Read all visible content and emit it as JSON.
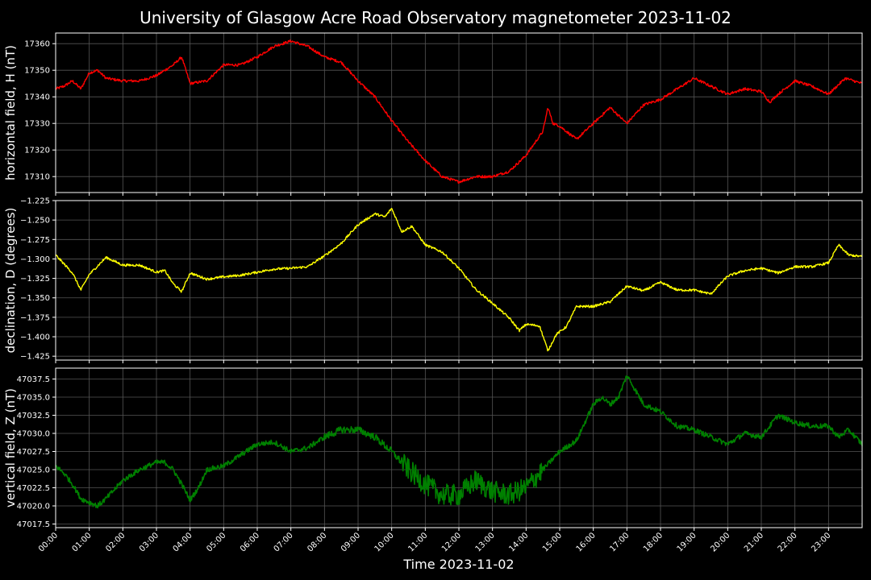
{
  "figure": {
    "title": "University of Glasgow Acre Road Observatory magnetometer 2023-11-02",
    "xlabel": "Time 2023-11-02",
    "background": "#000000",
    "text_color": "#ffffff",
    "grid_color": "#555555"
  },
  "chart_data": [
    {
      "type": "line",
      "ylabel": "horizontal field, H (nT)",
      "color": "#ff0000",
      "grid": true,
      "x_hours": [
        0,
        0.25,
        0.5,
        0.75,
        1.0,
        1.25,
        1.5,
        2.0,
        2.5,
        3.0,
        3.5,
        3.75,
        4.0,
        4.5,
        5.0,
        5.5,
        6.0,
        6.5,
        7.0,
        7.5,
        8.0,
        8.5,
        9.0,
        9.5,
        10.0,
        10.5,
        11.0,
        11.5,
        12.0,
        12.5,
        13.0,
        13.5,
        14.0,
        14.5,
        14.65,
        14.8,
        15.0,
        15.5,
        16.0,
        16.5,
        17.0,
        17.5,
        18.0,
        18.5,
        19.0,
        19.5,
        20.0,
        20.5,
        21.0,
        21.25,
        21.5,
        22.0,
        22.5,
        23.0,
        23.5,
        24.0
      ],
      "values": [
        17343,
        17344,
        17346,
        17343,
        17349,
        17350,
        17347,
        17346,
        17346,
        17348,
        17352,
        17355,
        17345,
        17346,
        17352,
        17352,
        17355,
        17359,
        17361,
        17359,
        17355,
        17353,
        17346,
        17340,
        17331,
        17323,
        17316,
        17310,
        17308,
        17310,
        17310,
        17312,
        17318,
        17327,
        17336,
        17330,
        17329,
        17324,
        17330,
        17336,
        17330,
        17337,
        17339,
        17343,
        17347,
        17344,
        17341,
        17343,
        17342,
        17338,
        17341,
        17346,
        17344,
        17341,
        17347,
        17345
      ],
      "ylim": [
        17304,
        17364
      ],
      "yticks": [
        17310,
        17320,
        17330,
        17340,
        17350,
        17360
      ],
      "ytick_labels": [
        "17310",
        "17320",
        "17330",
        "17340",
        "17350",
        "17360"
      ]
    },
    {
      "type": "line",
      "ylabel": "declination, D (degrees)",
      "color": "#ffff00",
      "grid": true,
      "x_hours": [
        0,
        0.5,
        0.75,
        1.0,
        1.5,
        2.0,
        2.5,
        3.0,
        3.25,
        3.5,
        3.75,
        4.0,
        4.5,
        5.0,
        5.5,
        6.0,
        6.5,
        7.0,
        7.5,
        8.0,
        8.5,
        9.0,
        9.5,
        9.8,
        10.0,
        10.3,
        10.6,
        11.0,
        11.5,
        12.0,
        12.5,
        13.0,
        13.5,
        13.8,
        14.0,
        14.4,
        14.65,
        14.9,
        15.2,
        15.5,
        16.0,
        16.5,
        17.0,
        17.5,
        18.0,
        18.5,
        19.0,
        19.5,
        20.0,
        20.5,
        21.0,
        21.5,
        22.0,
        22.5,
        23.0,
        23.3,
        23.6,
        24.0
      ],
      "values": [
        -1.295,
        -1.318,
        -1.34,
        -1.32,
        -1.298,
        -1.308,
        -1.308,
        -1.317,
        -1.315,
        -1.332,
        -1.342,
        -1.318,
        -1.326,
        -1.323,
        -1.321,
        -1.317,
        -1.313,
        -1.312,
        -1.31,
        -1.296,
        -1.28,
        -1.256,
        -1.242,
        -1.246,
        -1.235,
        -1.265,
        -1.258,
        -1.282,
        -1.291,
        -1.312,
        -1.339,
        -1.357,
        -1.376,
        -1.392,
        -1.384,
        -1.386,
        -1.418,
        -1.397,
        -1.387,
        -1.361,
        -1.361,
        -1.355,
        -1.335,
        -1.341,
        -1.33,
        -1.34,
        -1.34,
        -1.345,
        -1.322,
        -1.315,
        -1.312,
        -1.318,
        -1.31,
        -1.31,
        -1.305,
        -1.282,
        -1.295,
        -1.297
      ],
      "ylim": [
        -1.43,
        -1.225
      ],
      "yticks": [
        -1.425,
        -1.4,
        -1.375,
        -1.35,
        -1.325,
        -1.3,
        -1.275,
        -1.25,
        -1.225
      ],
      "ytick_labels": [
        "−1.425",
        "−1.400",
        "−1.375",
        "−1.350",
        "−1.325",
        "−1.300",
        "−1.275",
        "−1.250",
        "−1.225"
      ]
    },
    {
      "type": "line",
      "ylabel": "vertical field, Z (nT)",
      "color": "#008000",
      "grid": true,
      "x_hours": [
        0,
        0.25,
        0.5,
        0.75,
        1.0,
        1.25,
        1.5,
        2.0,
        2.5,
        3.0,
        3.25,
        3.5,
        3.75,
        4.0,
        4.25,
        4.5,
        5.0,
        5.5,
        6.0,
        6.5,
        7.0,
        7.5,
        8.0,
        8.5,
        9.0,
        9.5,
        10.0,
        10.5,
        11.0,
        11.5,
        12.0,
        12.5,
        13.0,
        13.5,
        14.0,
        14.5,
        15.0,
        15.5,
        16.0,
        16.25,
        16.5,
        16.75,
        17.0,
        17.5,
        18.0,
        18.5,
        19.0,
        19.5,
        20.0,
        20.5,
        21.0,
        21.25,
        21.5,
        22.0,
        22.5,
        23.0,
        23.3,
        23.6,
        24.0
      ],
      "values": [
        47025.5,
        47024.5,
        47023,
        47021,
        47020.5,
        47020,
        47021,
        47023.5,
        47025,
        47026,
        47026,
        47025,
        47023,
        47020.8,
        47022.5,
        47025,
        47025.5,
        47027,
        47028.5,
        47028.8,
        47027.5,
        47028,
        47029.5,
        47030.5,
        47030.5,
        47029.5,
        47027.5,
        47025,
        47023,
        47021.5,
        47021.5,
        47023.5,
        47022,
        47021.5,
        47022.5,
        47025,
        47027.5,
        47029,
        47034,
        47035,
        47034,
        47035,
        47038,
        47034,
        47033,
        47031,
        47030.5,
        47029.5,
        47028.5,
        47030,
        47029.5,
        47031,
        47032.5,
        47031.5,
        47031,
        47031,
        47029.5,
        47030.5,
        47028.5
      ],
      "ylim": [
        47017,
        47039
      ],
      "yticks": [
        47017.5,
        47020.0,
        47022.5,
        47025.0,
        47027.5,
        47030.0,
        47032.5,
        47035.0,
        47037.5
      ],
      "ytick_labels": [
        "47017.5",
        "47020.0",
        "47022.5",
        "47025.0",
        "47027.5",
        "47030.0",
        "47032.5",
        "47035.0",
        "47037.5"
      ]
    }
  ],
  "x_axis": {
    "range_hours": [
      0,
      24
    ],
    "ticks": [
      "00:00",
      "01:00",
      "02:00",
      "03:00",
      "04:00",
      "05:00",
      "06:00",
      "07:00",
      "08:00",
      "09:00",
      "10:00",
      "11:00",
      "12:00",
      "13:00",
      "14:00",
      "15:00",
      "16:00",
      "17:00",
      "18:00",
      "19:00",
      "20:00",
      "21:00",
      "22:00",
      "23:00"
    ]
  }
}
